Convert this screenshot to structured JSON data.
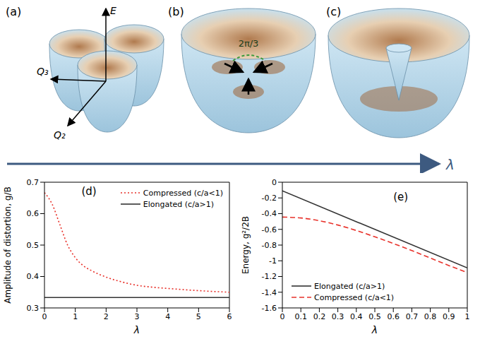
{
  "diagram": {
    "panels": [
      {
        "panel": "(a)",
        "axes": [
          "E",
          "Q₃",
          "Q₂"
        ]
      },
      {
        "panel": "(b)",
        "annotation": "2π/3"
      },
      {
        "panel": "(c)"
      }
    ],
    "arrow_label": "λ"
  },
  "chart_data": [
    {
      "type": "line",
      "panel": "(d)",
      "x_label": "λ",
      "y_label": "Amplitude of distortion, g/B",
      "xlim": [
        0,
        6
      ],
      "xticks": [
        0,
        1,
        2,
        3,
        4,
        5,
        6
      ],
      "ylim": [
        0.3,
        0.7
      ],
      "yticks": [
        0.3,
        0.4,
        0.5,
        0.6,
        0.7
      ],
      "legend": "upper right",
      "series": [
        {
          "name": "Compressed (c/a<1)",
          "color": "#e8322b",
          "line_style": "dotted",
          "x": [
            0,
            0.25,
            0.5,
            0.75,
            1,
            1.25,
            1.5,
            2,
            2.5,
            3,
            3.5,
            4,
            5,
            6
          ],
          "values": [
            0.667,
            0.63,
            0.565,
            0.5,
            0.46,
            0.435,
            0.42,
            0.398,
            0.383,
            0.372,
            0.366,
            0.362,
            0.355,
            0.35
          ]
        },
        {
          "name": "Elongated (c/a>1)",
          "color": "#333333",
          "line_style": "solid",
          "x": [
            0,
            6
          ],
          "values": [
            0.333,
            0.333
          ]
        }
      ]
    },
    {
      "type": "line",
      "panel": "(e)",
      "x_label": "λ",
      "y_label": "Energy, g²/2B",
      "xlim": [
        0,
        1
      ],
      "xticks": [
        0,
        0.1,
        0.2,
        0.3,
        0.4,
        0.5,
        0.6,
        0.7,
        0.8,
        0.9,
        1
      ],
      "ylim": [
        -1.6,
        0
      ],
      "yticks": [
        -1.6,
        -1.4,
        -1.2,
        -1,
        -0.8,
        -0.6,
        -0.4,
        -0.2,
        0
      ],
      "legend": "lower left",
      "series": [
        {
          "name": "Elongated (c/a>1)",
          "color": "#333333",
          "line_style": "solid",
          "x": [
            0,
            1
          ],
          "values": [
            -0.11,
            -1.09
          ]
        },
        {
          "name": "Compressed (c/a<1)",
          "color": "#e8322b",
          "line_style": "dashed",
          "x": [
            0,
            0.1,
            0.2,
            0.3,
            0.4,
            0.5,
            0.6,
            0.7,
            0.8,
            0.9,
            1
          ],
          "values": [
            -0.444,
            -0.455,
            -0.49,
            -0.545,
            -0.615,
            -0.695,
            -0.78,
            -0.87,
            -0.965,
            -1.06,
            -1.15
          ]
        }
      ]
    }
  ]
}
